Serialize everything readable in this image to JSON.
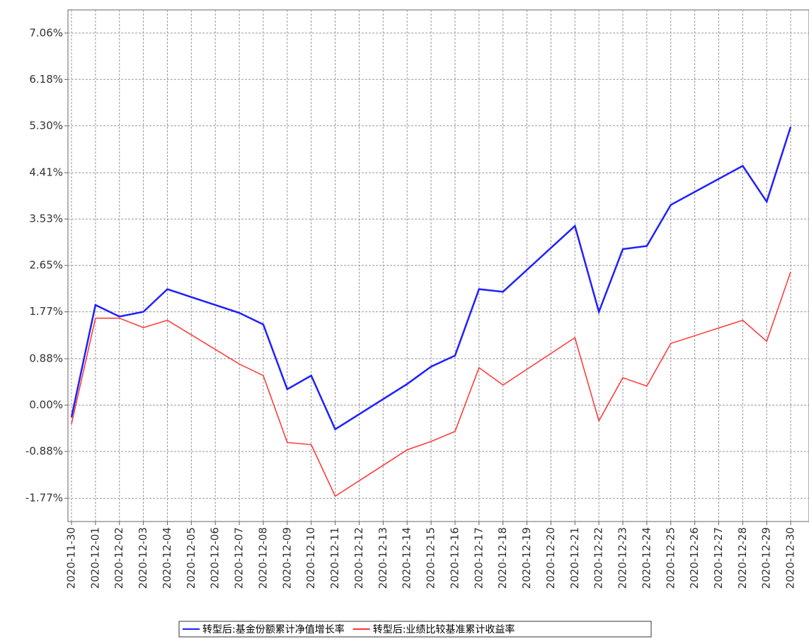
{
  "chart_data": {
    "type": "line",
    "categories": [
      "2020-11-30",
      "2020-12-01",
      "2020-12-02",
      "2020-12-03",
      "2020-12-04",
      "2020-12-05",
      "2020-12-06",
      "2020-12-07",
      "2020-12-08",
      "2020-12-09",
      "2020-12-10",
      "2020-12-11",
      "2020-12-12",
      "2020-12-13",
      "2020-12-14",
      "2020-12-15",
      "2020-12-16",
      "2020-12-17",
      "2020-12-18",
      "2020-12-19",
      "2020-12-20",
      "2020-12-21",
      "2020-12-22",
      "2020-12-23",
      "2020-12-24",
      "2020-12-25",
      "2020-12-26",
      "2020-12-27",
      "2020-12-28",
      "2020-12-29",
      "2020-12-30"
    ],
    "x": [
      "2020-11-30",
      "2020-12-01",
      "2020-12-02",
      "2020-12-03",
      "2020-12-04",
      "2020-12-07",
      "2020-12-08",
      "2020-12-09",
      "2020-12-10",
      "2020-12-11",
      "2020-12-14",
      "2020-12-15",
      "2020-12-16",
      "2020-12-17",
      "2020-12-18",
      "2020-12-21",
      "2020-12-22",
      "2020-12-23",
      "2020-12-24",
      "2020-12-25",
      "2020-12-28",
      "2020-12-29",
      "2020-12-30"
    ],
    "series": [
      {
        "name": "转型后:基金份额累计净值增长率",
        "color": "#1f1fff",
        "values": [
          -0.23,
          1.9,
          1.68,
          1.77,
          2.2,
          1.75,
          1.53,
          0.3,
          0.56,
          -0.46,
          0.4,
          0.73,
          0.94,
          2.2,
          2.15,
          3.4,
          1.77,
          2.96,
          3.02,
          3.8,
          4.54,
          3.86,
          5.28
        ]
      },
      {
        "name": "转型后:业绩比较基准累计收益率",
        "color": "#ff3333",
        "values": [
          -0.36,
          1.65,
          1.65,
          1.47,
          1.61,
          0.78,
          0.56,
          -0.71,
          -0.75,
          -1.73,
          -0.85,
          -0.69,
          -0.5,
          0.71,
          0.38,
          1.28,
          -0.3,
          0.52,
          0.36,
          1.17,
          1.61,
          1.21,
          2.53
        ]
      }
    ],
    "ylim": [
      -2.21,
      7.5
    ],
    "yticks": [
      {
        "value": -1.77,
        "label": "-1.77%"
      },
      {
        "value": -0.88,
        "label": "-0.88%"
      },
      {
        "value": 0,
        "label": "0.00%"
      },
      {
        "value": 0.88,
        "label": "0.88%"
      },
      {
        "value": 1.77,
        "label": "1.77%"
      },
      {
        "value": 2.65,
        "label": "2.65%"
      },
      {
        "value": 3.53,
        "label": "3.53%"
      },
      {
        "value": 4.41,
        "label": "4.41%"
      },
      {
        "value": 5.3,
        "label": "5.30%"
      },
      {
        "value": 6.18,
        "label": "6.18%"
      },
      {
        "value": 7.06,
        "label": "7.06%"
      }
    ],
    "grid": true
  }
}
